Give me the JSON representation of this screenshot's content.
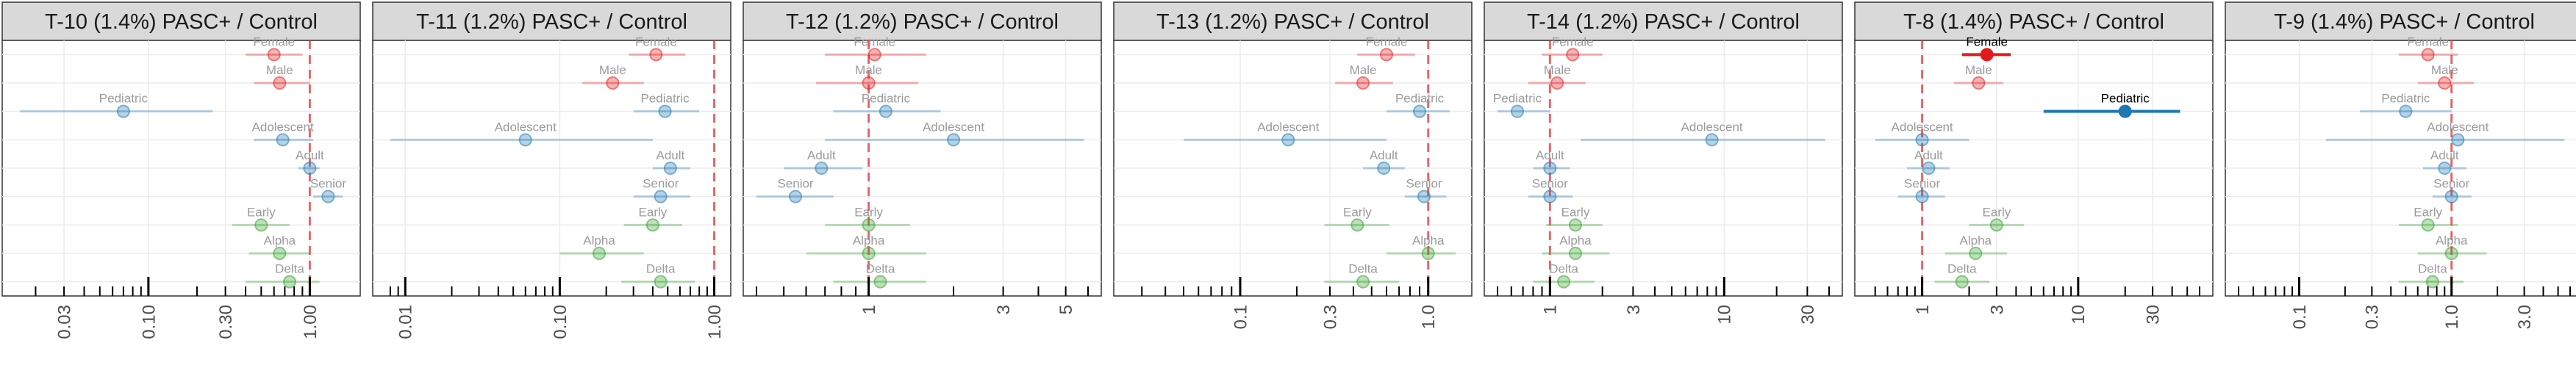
{
  "colors": {
    "sex": "#e31a1c",
    "age": "#1f78b4",
    "variant": "#33a02c",
    "reference_line": "#e31a1c",
    "strip_bg": "#d9d9d9",
    "grid": "#ebebeb"
  },
  "chart_data": [
    {
      "type": "scatter",
      "title": "T-10 (1.4%) PASC+ / Control",
      "xscale": "log",
      "xlim": [
        0.015,
        1.7
      ],
      "xticks": [
        "0.03",
        "0.10",
        "0.30",
        "1.00"
      ],
      "reference_line": 1,
      "points": [
        {
          "label": "Female",
          "group": "sex",
          "estimate": 0.6,
          "lo": 0.4,
          "hi": 0.9,
          "significant": false
        },
        {
          "label": "Male",
          "group": "sex",
          "estimate": 0.65,
          "lo": 0.45,
          "hi": 1.0,
          "significant": false
        },
        {
          "label": "Pediatric",
          "group": "age",
          "estimate": 0.07,
          "lo": 0.016,
          "hi": 0.25,
          "significant": false
        },
        {
          "label": "Adolescent",
          "group": "age",
          "estimate": 0.68,
          "lo": 0.45,
          "hi": 1.05,
          "significant": false
        },
        {
          "label": "Adult",
          "group": "age",
          "estimate": 1.0,
          "lo": 0.85,
          "hi": 1.15,
          "significant": false
        },
        {
          "label": "Senior",
          "group": "age",
          "estimate": 1.3,
          "lo": 1.05,
          "hi": 1.6,
          "significant": false
        },
        {
          "label": "Early",
          "group": "variant",
          "estimate": 0.5,
          "lo": 0.33,
          "hi": 0.75,
          "significant": false
        },
        {
          "label": "Alpha",
          "group": "variant",
          "estimate": 0.65,
          "lo": 0.42,
          "hi": 1.0,
          "significant": false
        },
        {
          "label": "Delta",
          "group": "variant",
          "estimate": 0.75,
          "lo": 0.4,
          "hi": 1.15,
          "significant": false
        }
      ]
    },
    {
      "type": "scatter",
      "title": "T-11 (1.2%) PASC+ / Control",
      "xscale": "log",
      "xlim": [
        0.0075,
        1.05
      ],
      "xticks": [
        "0.01",
        "0.10",
        "1.00"
      ],
      "reference_line": 1,
      "points": [
        {
          "label": "Female",
          "group": "sex",
          "estimate": 0.42,
          "lo": 0.28,
          "hi": 0.65,
          "significant": false
        },
        {
          "label": "Male",
          "group": "sex",
          "estimate": 0.22,
          "lo": 0.14,
          "hi": 0.35,
          "significant": false
        },
        {
          "label": "Pediatric",
          "group": "age",
          "estimate": 0.48,
          "lo": 0.3,
          "hi": 0.8,
          "significant": false
        },
        {
          "label": "Adolescent",
          "group": "age",
          "estimate": 0.06,
          "lo": 0.008,
          "hi": 0.4,
          "significant": false
        },
        {
          "label": "Adult",
          "group": "age",
          "estimate": 0.52,
          "lo": 0.4,
          "hi": 0.7,
          "significant": false
        },
        {
          "label": "Senior",
          "group": "age",
          "estimate": 0.45,
          "lo": 0.3,
          "hi": 0.7,
          "significant": false
        },
        {
          "label": "Early",
          "group": "variant",
          "estimate": 0.4,
          "lo": 0.26,
          "hi": 0.62,
          "significant": false
        },
        {
          "label": "Alpha",
          "group": "variant",
          "estimate": 0.18,
          "lo": 0.1,
          "hi": 0.35,
          "significant": false
        },
        {
          "label": "Delta",
          "group": "variant",
          "estimate": 0.45,
          "lo": 0.25,
          "hi": 0.75,
          "significant": false
        }
      ]
    },
    {
      "type": "scatter",
      "title": "T-12 (1.2%) PASC+ / Control",
      "xscale": "log",
      "xlim": [
        0.4,
        6
      ],
      "xticks": [
        "1",
        "3",
        "5"
      ],
      "reference_line": 1,
      "points": [
        {
          "label": "Female",
          "group": "sex",
          "estimate": 1.05,
          "lo": 0.7,
          "hi": 1.6,
          "significant": false
        },
        {
          "label": "Male",
          "group": "sex",
          "estimate": 1.0,
          "lo": 0.65,
          "hi": 1.5,
          "significant": false
        },
        {
          "label": "Pediatric",
          "group": "age",
          "estimate": 1.15,
          "lo": 0.75,
          "hi": 1.8,
          "significant": false
        },
        {
          "label": "Adolescent",
          "group": "age",
          "estimate": 2.0,
          "lo": 0.7,
          "hi": 5.8,
          "significant": false
        },
        {
          "label": "Adult",
          "group": "age",
          "estimate": 0.68,
          "lo": 0.5,
          "hi": 0.95,
          "significant": false
        },
        {
          "label": "Senior",
          "group": "age",
          "estimate": 0.55,
          "lo": 0.4,
          "hi": 0.75,
          "significant": false
        },
        {
          "label": "Early",
          "group": "variant",
          "estimate": 1.0,
          "lo": 0.7,
          "hi": 1.4,
          "significant": false
        },
        {
          "label": "Alpha",
          "group": "variant",
          "estimate": 1.0,
          "lo": 0.6,
          "hi": 1.6,
          "significant": false
        },
        {
          "label": "Delta",
          "group": "variant",
          "estimate": 1.1,
          "lo": 0.75,
          "hi": 1.6,
          "significant": false
        }
      ]
    },
    {
      "type": "scatter",
      "title": "T-13 (1.2%) PASC+ / Control",
      "xscale": "log",
      "xlim": [
        0.025,
        1.45
      ],
      "xticks": [
        "0.1",
        "0.3",
        "1.0"
      ],
      "reference_line": 1,
      "points": [
        {
          "label": "Female",
          "group": "sex",
          "estimate": 0.6,
          "lo": 0.42,
          "hi": 0.85,
          "significant": false
        },
        {
          "label": "Male",
          "group": "sex",
          "estimate": 0.45,
          "lo": 0.32,
          "hi": 0.65,
          "significant": false
        },
        {
          "label": "Pediatric",
          "group": "age",
          "estimate": 0.9,
          "lo": 0.6,
          "hi": 1.3,
          "significant": false
        },
        {
          "label": "Adolescent",
          "group": "age",
          "estimate": 0.18,
          "lo": 0.05,
          "hi": 0.6,
          "significant": false
        },
        {
          "label": "Adult",
          "group": "age",
          "estimate": 0.58,
          "lo": 0.45,
          "hi": 0.75,
          "significant": false
        },
        {
          "label": "Senior",
          "group": "age",
          "estimate": 0.95,
          "lo": 0.75,
          "hi": 1.25,
          "significant": false
        },
        {
          "label": "Early",
          "group": "variant",
          "estimate": 0.42,
          "lo": 0.28,
          "hi": 0.62,
          "significant": false
        },
        {
          "label": "Alpha",
          "group": "variant",
          "estimate": 1.0,
          "lo": 0.6,
          "hi": 1.4,
          "significant": false
        },
        {
          "label": "Delta",
          "group": "variant",
          "estimate": 0.45,
          "lo": 0.28,
          "hi": 0.7,
          "significant": false
        }
      ]
    },
    {
      "type": "scatter",
      "title": "T-14 (1.2%) PASC+ / Control",
      "xscale": "log",
      "xlim": [
        0.5,
        40
      ],
      "xticks": [
        "1",
        "3",
        "10",
        "30"
      ],
      "reference_line": 1,
      "points": [
        {
          "label": "Female",
          "group": "sex",
          "estimate": 1.35,
          "lo": 0.9,
          "hi": 2.0,
          "significant": false
        },
        {
          "label": "Male",
          "group": "sex",
          "estimate": 1.1,
          "lo": 0.75,
          "hi": 1.6,
          "significant": false
        },
        {
          "label": "Pediatric",
          "group": "age",
          "estimate": 0.65,
          "lo": 0.5,
          "hi": 1.0,
          "significant": false
        },
        {
          "label": "Adolescent",
          "group": "age",
          "estimate": 8.5,
          "lo": 1.5,
          "hi": 38.0,
          "significant": false
        },
        {
          "label": "Adult",
          "group": "age",
          "estimate": 1.0,
          "lo": 0.8,
          "hi": 1.3,
          "significant": false
        },
        {
          "label": "Senior",
          "group": "age",
          "estimate": 1.0,
          "lo": 0.75,
          "hi": 1.35,
          "significant": false
        },
        {
          "label": "Early",
          "group": "variant",
          "estimate": 1.4,
          "lo": 0.95,
          "hi": 2.0,
          "significant": false
        },
        {
          "label": "Alpha",
          "group": "variant",
          "estimate": 1.4,
          "lo": 0.9,
          "hi": 2.2,
          "significant": false
        },
        {
          "label": "Delta",
          "group": "variant",
          "estimate": 1.2,
          "lo": 0.8,
          "hi": 1.8,
          "significant": false
        }
      ]
    },
    {
      "type": "scatter",
      "title": "T-8 (1.4%) PASC+ / Control",
      "xscale": "log",
      "xlim": [
        0.45,
        60
      ],
      "xticks": [
        "1",
        "3",
        "10",
        "30"
      ],
      "reference_line": 1,
      "points": [
        {
          "label": "Female",
          "group": "sex",
          "estimate": 2.6,
          "lo": 1.8,
          "hi": 3.7,
          "significant": true
        },
        {
          "label": "Male",
          "group": "sex",
          "estimate": 2.3,
          "lo": 1.6,
          "hi": 3.3,
          "significant": false
        },
        {
          "label": "Pediatric",
          "group": "age",
          "estimate": 20.0,
          "lo": 6.0,
          "hi": 45.0,
          "significant": true
        },
        {
          "label": "Adolescent",
          "group": "age",
          "estimate": 1.0,
          "lo": 0.5,
          "hi": 2.0,
          "significant": false
        },
        {
          "label": "Adult",
          "group": "age",
          "estimate": 1.1,
          "lo": 0.8,
          "hi": 1.5,
          "significant": false
        },
        {
          "label": "Senior",
          "group": "age",
          "estimate": 1.0,
          "lo": 0.7,
          "hi": 1.4,
          "significant": false
        },
        {
          "label": "Early",
          "group": "variant",
          "estimate": 3.0,
          "lo": 2.0,
          "hi": 4.5,
          "significant": false
        },
        {
          "label": "Alpha",
          "group": "variant",
          "estimate": 2.2,
          "lo": 1.4,
          "hi": 3.5,
          "significant": false
        },
        {
          "label": "Delta",
          "group": "variant",
          "estimate": 1.8,
          "lo": 1.2,
          "hi": 2.7,
          "significant": false
        }
      ]
    },
    {
      "type": "scatter",
      "title": "T-9 (1.4%) PASC+ / Control",
      "xscale": "log",
      "xlim": [
        0.04,
        6
      ],
      "xticks": [
        "0.1",
        "0.3",
        "1.0",
        "3.0"
      ],
      "reference_line": 1,
      "points": [
        {
          "label": "Female",
          "group": "sex",
          "estimate": 0.7,
          "lo": 0.45,
          "hi": 1.1,
          "significant": false
        },
        {
          "label": "Male",
          "group": "sex",
          "estimate": 0.9,
          "lo": 0.6,
          "hi": 1.4,
          "significant": false
        },
        {
          "label": "Pediatric",
          "group": "age",
          "estimate": 0.5,
          "lo": 0.25,
          "hi": 1.0,
          "significant": false
        },
        {
          "label": "Adolescent",
          "group": "age",
          "estimate": 1.1,
          "lo": 0.15,
          "hi": 5.5,
          "significant": false
        },
        {
          "label": "Adult",
          "group": "age",
          "estimate": 0.9,
          "lo": 0.65,
          "hi": 1.25,
          "significant": false
        },
        {
          "label": "Senior",
          "group": "age",
          "estimate": 1.0,
          "lo": 0.75,
          "hi": 1.35,
          "significant": false
        },
        {
          "label": "Early",
          "group": "variant",
          "estimate": 0.7,
          "lo": 0.45,
          "hi": 1.1,
          "significant": false
        },
        {
          "label": "Alpha",
          "group": "variant",
          "estimate": 1.0,
          "lo": 0.6,
          "hi": 1.7,
          "significant": false
        },
        {
          "label": "Delta",
          "group": "variant",
          "estimate": 0.75,
          "lo": 0.45,
          "hi": 1.2,
          "significant": false
        }
      ]
    }
  ]
}
